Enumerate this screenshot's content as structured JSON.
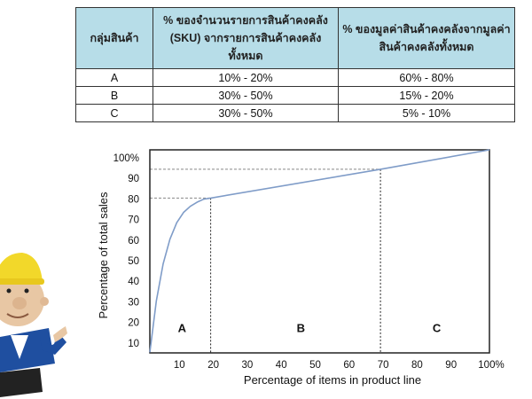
{
  "table": {
    "headers": [
      "กลุ่มสินค้า",
      "% ของจำนวนรายการสินค้าคงคลัง (SKU) จากรายการสินค้าคงคลังทั้งหมด",
      "% ของมูลค่าสินค้าคงคลังจากมูลค่าสินค้าคงคลังทั้งหมด"
    ],
    "rows": [
      [
        "A",
        "10% - 20%",
        "60% - 80%"
      ],
      [
        "B",
        "30% - 50%",
        "15% - 20%"
      ],
      [
        "C",
        "30% - 50%",
        "5% - 10%"
      ]
    ],
    "header_bg": "#b7dde8"
  },
  "illustration": {
    "icon": "construction-worker-cartoon",
    "helmet_color": "#f2d82a",
    "shirt_color": "#1f4fa0"
  },
  "chart_data": {
    "type": "line",
    "xlabel": "Percentage of items in product line",
    "ylabel": "Percentage of total sales",
    "xlim": [
      0,
      100
    ],
    "ylim": [
      0,
      100
    ],
    "x_ticks": [
      "10",
      "20",
      "30",
      "40",
      "50",
      "60",
      "70",
      "80",
      "90",
      "100%"
    ],
    "y_ticks": [
      "10",
      "20",
      "30",
      "40",
      "50",
      "60",
      "70",
      "80",
      "90",
      "100%"
    ],
    "series": [
      {
        "x": [
          2,
          4,
          6,
          8,
          10,
          12,
          14,
          16,
          18,
          20,
          70,
          100
        ],
        "y": [
          5,
          30,
          48,
          60,
          68,
          73,
          76,
          78,
          79.5,
          80,
          94,
          100
        ],
        "color": "#7f9cc8"
      }
    ],
    "reference_lines": [
      {
        "x": 20,
        "y": 80
      },
      {
        "x": 70,
        "y": 94
      }
    ],
    "regions": [
      {
        "label": "A",
        "x": 10
      },
      {
        "label": "B",
        "x": 45
      },
      {
        "label": "C",
        "x": 85
      }
    ],
    "grid": false
  }
}
